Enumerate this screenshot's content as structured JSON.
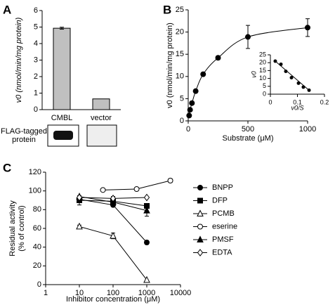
{
  "chart_data": [
    {
      "type": "bar",
      "panel_label": "A",
      "y_label": "v0 (nmol/min/mg protein)",
      "categories": [
        "CMBL",
        "vector"
      ],
      "values": [
        4.93,
        0.65
      ],
      "errors": [
        0.06,
        null
      ],
      "color": "#c0c0c0",
      "ylim": [
        0,
        6
      ],
      "yticks": [
        0,
        1,
        2,
        3,
        4,
        5,
        6
      ],
      "blot_label": [
        "FLAG-tagged",
        "protein"
      ]
    },
    {
      "type": "scatter",
      "panel_label": "B",
      "y_label": "v0 (nmol/min/mg protein)",
      "x_label": "Substrate (μM)",
      "x": [
        7.8,
        15.6,
        31.25,
        62.5,
        125,
        250,
        500,
        1000
      ],
      "values": [
        1.2,
        2.5,
        4.0,
        6.7,
        10.5,
        14.2,
        18.9,
        21.0
      ],
      "errors": [
        null,
        null,
        null,
        null,
        null,
        0.4,
        2.6,
        2.0
      ],
      "color": "#000000",
      "xlim": [
        0,
        1000
      ],
      "xticks": [
        0,
        500,
        1000
      ],
      "ylim": [
        0,
        25
      ],
      "yticks": [
        0,
        5,
        10,
        15,
        20,
        25
      ]
    },
    {
      "type": "inset-scatter",
      "y_label": "v0",
      "x_label": "v0/S",
      "x": [
        0.018,
        0.039,
        0.057,
        0.078,
        0.104,
        0.122,
        0.143
      ],
      "values": [
        21,
        19,
        14.5,
        10.5,
        7,
        4.5,
        2.5
      ],
      "color": "#000000",
      "xlim": [
        0,
        0.2
      ],
      "xticks": [
        0,
        0.1,
        0.2
      ],
      "ylim": [
        0,
        25
      ],
      "yticks": [
        0,
        5,
        10,
        15,
        20,
        25
      ]
    },
    {
      "type": "line",
      "panel_label": "C",
      "y_label": [
        "Residual activity",
        "(% of control)"
      ],
      "x_label": "Inhibitor concentration (μM)",
      "log_x": true,
      "xlim": [
        1,
        10000
      ],
      "xticks": [
        1,
        10,
        100,
        1000,
        10000
      ],
      "ylim": [
        0,
        120
      ],
      "yticks": [
        0,
        20,
        40,
        60,
        80,
        100,
        120
      ],
      "series": [
        {
          "name": "BNPP",
          "marker": "circle-filled",
          "x": [
            10,
            100,
            1000
          ],
          "values": [
            91,
            85,
            45
          ],
          "errors": [
            null,
            null,
            2
          ]
        },
        {
          "name": "DFP",
          "marker": "square-filled",
          "x": [
            10,
            100,
            1000
          ],
          "values": [
            90,
            89,
            84
          ],
          "errors": [
            5,
            null,
            null
          ]
        },
        {
          "name": "PCMB",
          "marker": "triangle-open",
          "x": [
            10,
            100,
            1000
          ],
          "values": [
            62,
            52,
            5
          ],
          "errors": [
            1.5,
            3,
            null
          ]
        },
        {
          "name": "eserine",
          "marker": "circle-open",
          "x": [
            50,
            500,
            5000
          ],
          "values": [
            101,
            102,
            111
          ],
          "errors": [
            null,
            null,
            2
          ]
        },
        {
          "name": "PMSF",
          "marker": "triangle-filled",
          "x": [
            10,
            100,
            1000
          ],
          "values": [
            94,
            88,
            79
          ],
          "errors": [
            null,
            null,
            6
          ]
        },
        {
          "name": "EDTA",
          "marker": "diamond-open",
          "x": [
            10,
            100,
            1000
          ],
          "values": [
            93,
            92,
            93
          ],
          "errors": [
            null,
            2,
            null
          ]
        }
      ]
    }
  ]
}
